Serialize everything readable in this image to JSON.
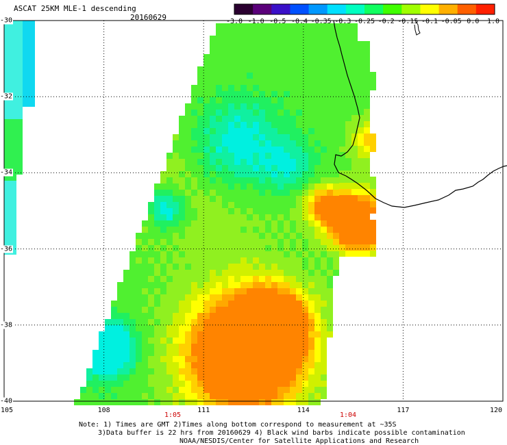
{
  "header": {
    "title": "ASCAT 25KM MLE-1 descending",
    "date": "20160629"
  },
  "colorbar": {
    "labels": [
      "-3.0",
      "-1.0",
      "-0.5",
      "-0.4",
      "-0.35",
      "-0.3",
      "-0.25",
      "-0.2",
      "-0.15",
      "-0.1",
      "-0.05",
      "0.0",
      "1.0"
    ],
    "colors": [
      "#2a0030",
      "#5a007a",
      "#3a10c8",
      "#0050ff",
      "#0098ff",
      "#00e0ff",
      "#00ffc0",
      "#10ff60",
      "#40ff00",
      "#a0ff00",
      "#ffff00",
      "#ffb000",
      "#ff6000",
      "#ff2000"
    ]
  },
  "axes": {
    "lon_labels": [
      "105",
      "108",
      "111",
      "114",
      "117",
      "120"
    ],
    "lat_labels": [
      "-30",
      "-32",
      "-34",
      "-36",
      "-38",
      "-40"
    ],
    "lon_range": [
      105,
      120
    ],
    "lat_range": [
      -40,
      -30
    ],
    "gridlines": true
  },
  "times": [
    "1:05",
    "1:04"
  ],
  "notes": {
    "line1": "Note: 1) Times are GMT 2)Times along bottom correspond to measurement at ~35S",
    "line2": "3)Data buffer is 22 hrs from 20160629 4) Black wind barbs indicate possible contamination",
    "line3": "NOAA/NESDIS/Center for Satellite Applications and Research"
  }
}
